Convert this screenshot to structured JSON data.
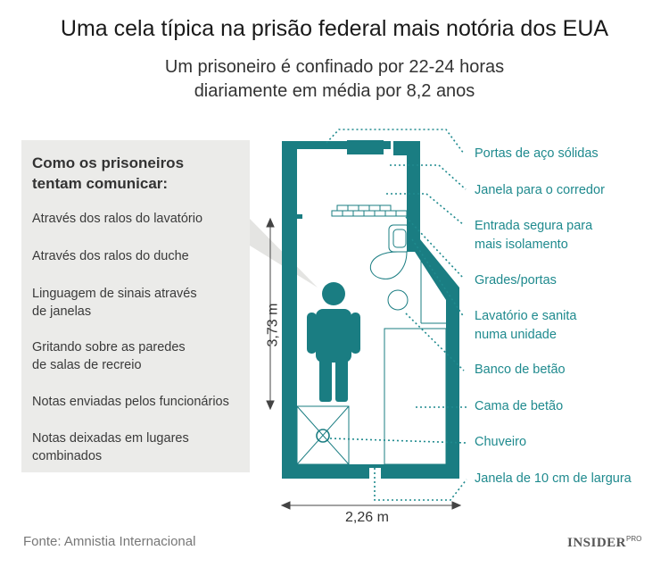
{
  "header": {
    "title": "Uma cela típica na prisão federal mais notória dos EUA",
    "subtitle_lines": [
      "Um prisoneiro é confinado por 22-24 horas",
      "diariamente em média por 8,2 anos"
    ]
  },
  "panel": {
    "heading_lines": [
      "Como os prisoneiros",
      "tentam comunicar:"
    ],
    "methods": [
      [
        "Através dos ralos do lavatório"
      ],
      [
        "Através dos ralos do duche"
      ],
      [
        "Linguagem de sinais através",
        "de janelas"
      ],
      [
        "Gritando sobre as paredes",
        "de salas de recreio"
      ],
      [
        "Notas enviadas pelos funcionários"
      ],
      [
        "Notas deixadas em lugares",
        "combinados"
      ]
    ]
  },
  "labels": {
    "doors": "Portas de aço sólidas",
    "corridor_window": "Janela para o corredor",
    "entrance": [
      "Entrada segura para",
      "mais isolamento"
    ],
    "bars": "Grades/portas",
    "sink_toilet": [
      "Lavatório e sanita",
      "numa unidade"
    ],
    "bench": "Banco de betão",
    "bed": "Cama de betão",
    "shower": "Chuveiro",
    "window": "Janela de 10 cm de largura"
  },
  "dimensions": {
    "length": "3,73 m",
    "width": "2,26 m"
  },
  "footer": {
    "source": "Fonte: Amnistia Internacional",
    "logo": "INSIDER",
    "logo_sup": "PRO"
  },
  "colors": {
    "wall": "#1a7d82",
    "accent_text": "#1f8a8e",
    "panel_bg": "#ebebe9"
  }
}
